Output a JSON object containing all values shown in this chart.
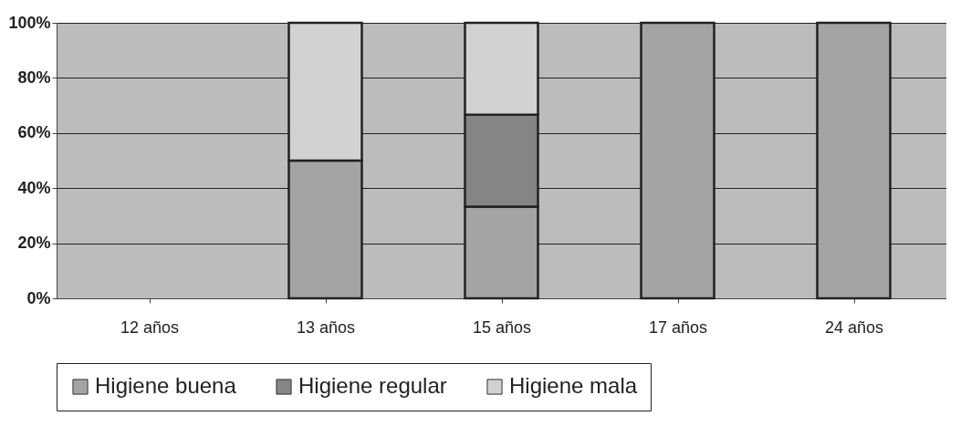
{
  "chart_data": {
    "type": "bar",
    "stacked": true,
    "categories": [
      "12 años",
      "13 años",
      "15 años",
      "17 años",
      "24 años"
    ],
    "series": [
      {
        "name": "Higiene buena",
        "color": "#a4a4a4",
        "values": [
          null,
          50,
          33.3,
          100,
          100
        ]
      },
      {
        "name": "Higiene regular",
        "color": "#858585",
        "values": [
          null,
          0,
          33.3,
          0,
          0
        ]
      },
      {
        "name": "Higiene mala",
        "color": "#d2d2d2",
        "values": [
          null,
          50,
          33.4,
          0,
          0
        ]
      }
    ],
    "ylim": [
      0,
      100
    ],
    "yticks": [
      {
        "value": 0,
        "label": "0%"
      },
      {
        "value": 20,
        "label": "20%"
      },
      {
        "value": 40,
        "label": "40%"
      },
      {
        "value": 60,
        "label": "60%"
      },
      {
        "value": 80,
        "label": "80%"
      },
      {
        "value": 100,
        "label": "100%"
      }
    ],
    "grid": "y",
    "legend": "bottom"
  }
}
